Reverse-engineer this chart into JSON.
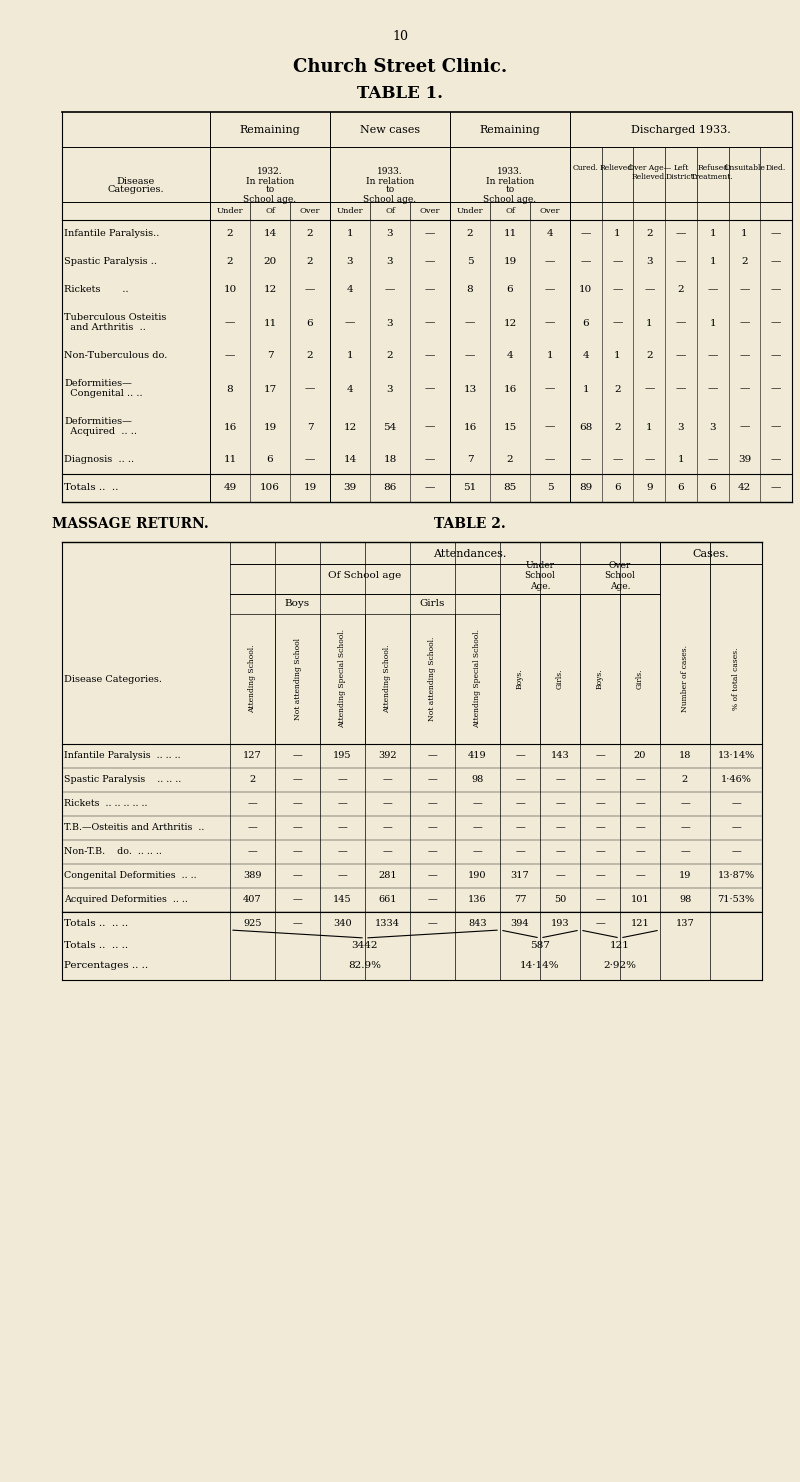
{
  "page_num": "10",
  "title": "Church Street Clinic.",
  "table1_title": "TABLE 1.",
  "table2_left_title": "MASSAGE RETURN.",
  "table2_right_title": "TABLE 2.",
  "bg_color": "#f0ead6",
  "table1_header_groups": [
    "Remaining",
    "New cases",
    "Remaining",
    "Discharged 1933."
  ],
  "table1_subheaders": [
    "1932.\nIn relation\nto\nSchool age.",
    "1933.\nIn relation\nto\nSchool age.",
    "1933.\nIn relation\nto\nSchool age."
  ],
  "table1_sub_cols": [
    "Under",
    "Of",
    "Over"
  ],
  "table1_discharge_cols": [
    "Cured.",
    "Relieved.",
    "Over Age—\nRelieved.",
    "Left\nDistrict.",
    "Refused\nTreatment.",
    "Unsuitable",
    "Died."
  ],
  "table1_row_labels": [
    "Infantile Paralysis..",
    "Spastic Paralysis ..",
    "Rickets       ..",
    "Tuberculous Osteitis\n  and Arthritis  ..",
    "Non-Tuberculous do.",
    "Deformities—\n  Congenital .. ..",
    "Deformities—\n  Acquired  .. ..",
    "Diagnosis  .. ..",
    "Totals ..  .."
  ],
  "table1_data": [
    [
      2,
      14,
      2,
      1,
      3,
      "—",
      2,
      11,
      4,
      "—",
      1,
      2,
      "—",
      1,
      1,
      "—"
    ],
    [
      2,
      20,
      2,
      3,
      3,
      "—",
      5,
      19,
      "—",
      "—",
      "—",
      3,
      "—",
      1,
      2,
      "—"
    ],
    [
      10,
      12,
      "—",
      4,
      "—",
      "—",
      8,
      6,
      "—",
      10,
      "—",
      "—",
      2,
      "—",
      "—",
      "—"
    ],
    [
      "—",
      11,
      6,
      "—",
      3,
      "—",
      "—",
      12,
      "—",
      6,
      "—",
      1,
      "—",
      1,
      "—",
      "—"
    ],
    [
      "—",
      7,
      2,
      1,
      2,
      "—",
      "—",
      4,
      1,
      4,
      1,
      2,
      "—",
      "—",
      "—",
      "—"
    ],
    [
      8,
      17,
      "—",
      4,
      3,
      "—",
      13,
      16,
      "—",
      1,
      2,
      "—",
      "—",
      "—",
      "—",
      "—"
    ],
    [
      16,
      19,
      7,
      12,
      54,
      "—",
      16,
      15,
      "—",
      68,
      2,
      1,
      3,
      3,
      "—",
      "—"
    ],
    [
      11,
      6,
      "—",
      14,
      18,
      "—",
      7,
      2,
      "—",
      "—",
      "—",
      "—",
      1,
      "—",
      39,
      "—"
    ],
    [
      49,
      106,
      19,
      39,
      86,
      "—",
      51,
      85,
      5,
      89,
      6,
      9,
      6,
      6,
      42,
      "—"
    ]
  ],
  "table2_row_labels": [
    "Infantile Paralysis  .. .. ..",
    "Spastic Paralysis    .. .. ..",
    "Rickets  .. .. .. .. ..",
    "T.B.—Osteitis and Arthritis  ..",
    "Non-T.B.    do.  .. .. ..",
    "Congenital Deformities  .. ..",
    "Acquired Deformities  .. ..",
    "Totals ..  .. ..",
    "Totals ..  .. ..",
    "Percentages .. .."
  ],
  "table2_col_headers_rot": [
    "Attending School.",
    "Not attending\nSchool",
    "Attending\nSpecial School.",
    "Attending School.",
    "Not attending\nSchool.",
    "Attending\nSpecial School.",
    "Boys.",
    "Girls.",
    "Boys.",
    "Girls.",
    "Number of cases.",
    "% of total cases."
  ],
  "table2_data": [
    [
      127,
      "—",
      195,
      392,
      "—",
      419,
      "—",
      143,
      "—",
      20,
      18,
      "13·14%"
    ],
    [
      2,
      "—",
      "—",
      "—",
      "—",
      98,
      "—",
      "—",
      "—",
      "—",
      2,
      "1·46%"
    ],
    [
      "—",
      "—",
      "—",
      "—",
      "—",
      "—",
      "—",
      "—",
      "—",
      "—",
      "—",
      "—"
    ],
    [
      "—",
      "—",
      "—",
      "—",
      "—",
      "—",
      "—",
      "—",
      "—",
      "—",
      "—",
      "—"
    ],
    [
      "—",
      "—",
      "—",
      "—",
      "—",
      "—",
      "—",
      "—",
      "—",
      "—",
      "—",
      "—"
    ],
    [
      389,
      "—",
      "—",
      281,
      "—",
      190,
      317,
      "—",
      "—",
      "—",
      19,
      "13·87%"
    ],
    [
      407,
      "—",
      145,
      661,
      "—",
      136,
      77,
      50,
      "—",
      101,
      98,
      "71·53%"
    ]
  ],
  "table2_totals": [
    925,
    "—",
    340,
    1334,
    "—",
    843,
    394,
    193,
    "—",
    121,
    137,
    ""
  ],
  "table2_grand_totals": [
    "3442",
    "",
    "",
    "",
    "587",
    "",
    "121",
    ""
  ],
  "table2_percentages": [
    "82.9%",
    "",
    "",
    "",
    "14·14%",
    "2·92%",
    "",
    ""
  ]
}
